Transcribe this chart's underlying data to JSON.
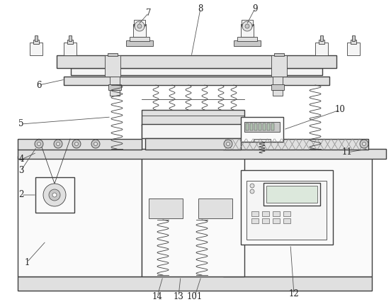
{
  "bg_color": "#ffffff",
  "line_color": "#404040",
  "lw_main": 1.0,
  "lw_thin": 0.6,
  "fc_light": "#f5f5f5",
  "fc_med": "#e0e0e0",
  "fc_dark": "#c8c8c8",
  "fc_white": "#fafafa"
}
